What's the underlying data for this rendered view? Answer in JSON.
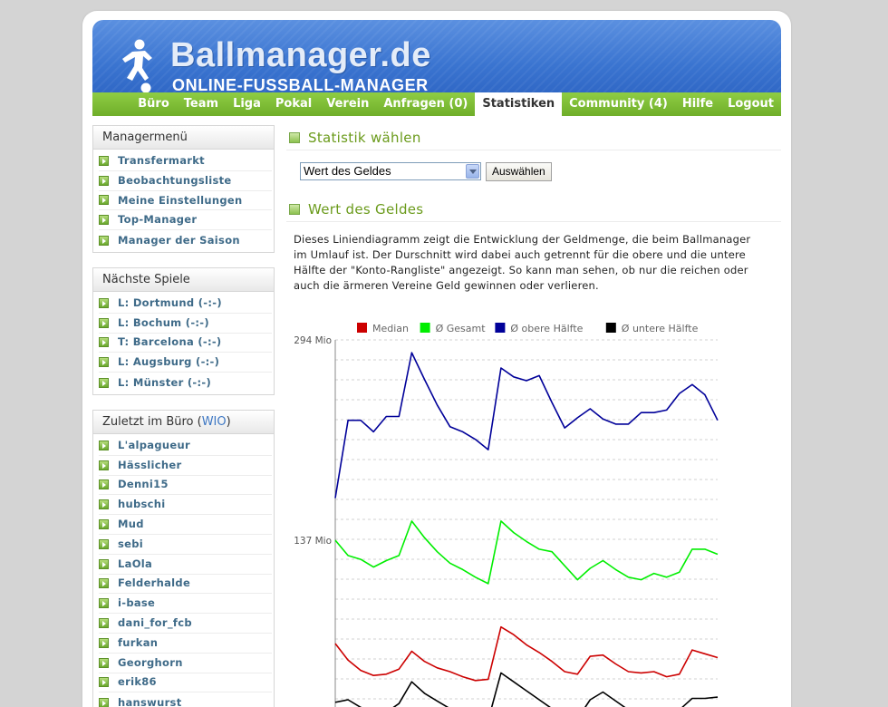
{
  "brand": {
    "name": "Ballmanager.de",
    "tagline": "ONLINE-FUSSBALL-MANAGER"
  },
  "nav": {
    "items": [
      {
        "label": "Büro",
        "active": false
      },
      {
        "label": "Team",
        "active": false
      },
      {
        "label": "Liga",
        "active": false
      },
      {
        "label": "Pokal",
        "active": false
      },
      {
        "label": "Verein",
        "active": false
      },
      {
        "label": "Anfragen (0)",
        "active": false
      },
      {
        "label": "Statistiken",
        "active": true
      },
      {
        "label": "Community (4)",
        "active": false
      },
      {
        "label": "Hilfe",
        "active": false
      },
      {
        "label": "Logout",
        "active": false
      }
    ]
  },
  "sidebar": {
    "managermenu": {
      "title": "Managermenü",
      "items": [
        "Transfermarkt",
        "Beobachtungsliste",
        "Meine Einstellungen",
        "Top-Manager",
        "Manager der Saison"
      ]
    },
    "next_games": {
      "title": "Nächste Spiele",
      "items": [
        "L: Dortmund (-:-)",
        "L: Bochum (-:-)",
        "T: Barcelona (-:-)",
        "L: Augsburg (-:-)",
        "L: Münster (-:-)"
      ]
    },
    "recent": {
      "title_prefix": "Zuletzt im Büro (",
      "title_link": "WIO",
      "title_suffix": ")",
      "items": [
        "L'alpagueur",
        "Hässlicher",
        "Denni15",
        "hubschi",
        "Mud",
        "sebi",
        "LaOla",
        "Felderhalde",
        "i-base",
        "dani_for_fcb",
        "furkan",
        "Georghorn",
        "erik86",
        "hanswurst"
      ]
    }
  },
  "main": {
    "choose_title": "Statistik wählen",
    "select_value": "Wert des Geldes",
    "submit_label": "Auswählen",
    "chart_title": "Wert des Geldes",
    "description": "Dieses Liniendiagramm zeigt die Entwicklung der Geldmenge, die beim Ballmanager im Umlauf ist. Der Durschnitt wird dabei auch getrennt für die obere und die untere Hälfte der \"Konto-Rangliste\" angezeigt. So kann man sehen, ob nur die reichen oder auch die ärmeren Vereine Geld gewinnen oder verlieren."
  },
  "colors": {
    "nav_green": "#7cbd36",
    "banner_blue": "#3a74d0",
    "title_green": "#6b9b1c"
  },
  "chart_data": {
    "type": "line",
    "ylim": [
      0,
      294
    ],
    "ytick_values": [
      294,
      137
    ],
    "ytick_labels": [
      "294 Mio",
      "137 Mio"
    ],
    "legend_position": "top",
    "grid": true,
    "x": [
      0,
      1,
      2,
      3,
      4,
      5,
      6,
      7,
      8,
      9,
      10,
      11,
      12,
      13,
      14,
      15,
      16,
      17,
      18,
      19,
      20,
      21,
      22,
      23,
      24,
      25,
      26,
      27,
      28,
      29,
      30
    ],
    "series": [
      {
        "name": "Median",
        "color": "#cc0000",
        "values": [
          56,
          43,
          35,
          31,
          32,
          36,
          50,
          42,
          37,
          34,
          30,
          27,
          28,
          69,
          63,
          55,
          49,
          42,
          34,
          32,
          46,
          47,
          40,
          34,
          33,
          34,
          30,
          32,
          51,
          48,
          45
        ]
      },
      {
        "name": "Ø Gesamt",
        "color": "#00ee00",
        "values": [
          137,
          125,
          122,
          116,
          121,
          125,
          152,
          139,
          128,
          119,
          114,
          108,
          103,
          152,
          143,
          136,
          130,
          128,
          117,
          106,
          115,
          121,
          114,
          108,
          106,
          111,
          108,
          112,
          130,
          130,
          126
        ]
      },
      {
        "name": "Ø obere Hälfte",
        "color": "#000099",
        "values": [
          170,
          231,
          231,
          222,
          234,
          234,
          284,
          263,
          243,
          226,
          222,
          216,
          208,
          272,
          265,
          262,
          266,
          245,
          225,
          233,
          240,
          232,
          228,
          228,
          237,
          237,
          239,
          252,
          259,
          251,
          231
        ]
      },
      {
        "name": "Ø untere Hälfte",
        "color": "#000000",
        "values": [
          10,
          12,
          6,
          2,
          2,
          9,
          26,
          17,
          11,
          5,
          2,
          -3,
          -4,
          33,
          26,
          19,
          12,
          5,
          0,
          -3,
          12,
          18,
          11,
          4,
          0,
          2,
          -1,
          4,
          13,
          13,
          14
        ]
      }
    ]
  }
}
